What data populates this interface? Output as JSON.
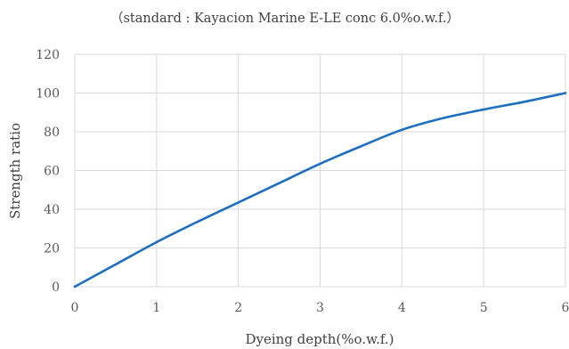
{
  "chart_data": {
    "type": "line",
    "title": "（standard : Kayacion Marine E-LE conc 6.0%o.w.f.）",
    "xlabel": "Dyeing depth(%o.w.f.)",
    "ylabel": "Strength ratio",
    "xlim": [
      0,
      6
    ],
    "ylim": [
      0,
      120
    ],
    "xticks": [
      0,
      1,
      2,
      3,
      4,
      5,
      6
    ],
    "yticks": [
      0,
      20,
      40,
      60,
      80,
      100,
      120
    ],
    "grid": true,
    "legend": "none",
    "line_color": "#1f6fbf",
    "grid_color": "#d9d9d9",
    "series": [
      {
        "x": [
          0,
          0.5,
          1,
          1.5,
          2,
          2.5,
          3,
          3.5,
          4,
          4.5,
          5,
          5.5,
          6
        ],
        "y": [
          0,
          11.5,
          23,
          33.5,
          43.5,
          53.5,
          63.5,
          72.5,
          81,
          87,
          91.5,
          95.5,
          100
        ]
      }
    ]
  }
}
